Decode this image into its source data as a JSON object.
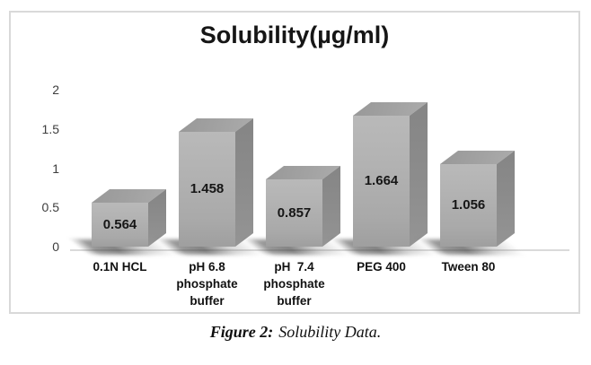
{
  "figure": {
    "caption_prefix": "Figure 2:",
    "caption_text": "Solubility Data."
  },
  "chart_data": {
    "type": "bar",
    "style": "3d",
    "title": "Solubility(µg/ml)",
    "xlabel": "",
    "ylabel": "",
    "categories": [
      "0.1N HCL",
      "pH 6.8\nphosphate\nbuffer",
      "pH  7.4\nphosphate\nbuffer",
      "PEG 400",
      "Tween 80"
    ],
    "values": [
      0.564,
      1.458,
      0.857,
      1.664,
      1.056
    ],
    "data_labels": [
      "0.564",
      "1.458",
      "0.857",
      "1.664",
      "1.056"
    ],
    "y_ticks": [
      0,
      0.5,
      1,
      1.5,
      2
    ],
    "y_tick_labels": [
      "0",
      "0.5",
      "1",
      "1.5",
      "2"
    ],
    "ylim": [
      0,
      2
    ],
    "grid": false,
    "legend": false,
    "colors": {
      "bar_front": "#aeaeae",
      "bar_top": "#9d9d9d",
      "bar_side": "#8b8b8b",
      "axis_line": "#dadada",
      "panel_border": "#d9d9d9",
      "text": "#161616"
    }
  }
}
